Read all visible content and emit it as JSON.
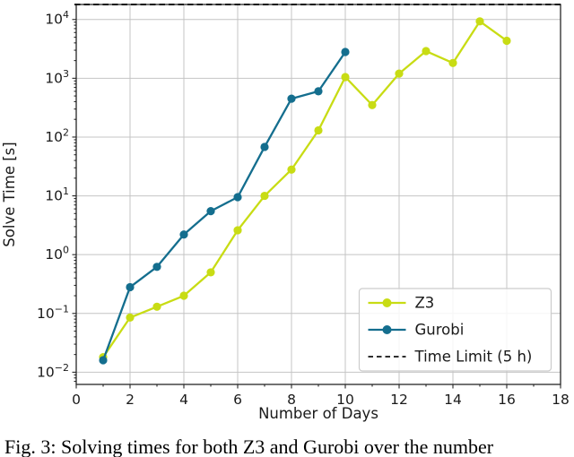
{
  "caption": {
    "text": "Fig. 3: Solving times for both Z3 and Gurobi over the number"
  },
  "chart_data": {
    "type": "line",
    "title": "",
    "xlabel": "Number of Days",
    "ylabel": "Solve Time [s]",
    "x_scale": "linear",
    "y_scale": "log",
    "xlim": [
      0,
      18
    ],
    "ylim": [
      0.0062,
      18000
    ],
    "x_ticks": [
      0,
      2,
      4,
      6,
      8,
      10,
      12,
      14,
      16,
      18
    ],
    "y_tick_base": "10",
    "y_tick_exponents": [
      4,
      3,
      2,
      1,
      0,
      -1,
      -2
    ],
    "grid": true,
    "legend": {
      "position": "lower-right-inside"
    },
    "series": [
      {
        "name": "Z3",
        "color": "#c8dc14",
        "marker": "circle",
        "x": [
          1,
          2,
          3,
          4,
          5,
          6,
          7,
          8,
          9,
          10,
          11,
          12,
          13,
          14,
          15,
          16
        ],
        "y": [
          0.018,
          0.085,
          0.13,
          0.2,
          0.5,
          2.6,
          10,
          28,
          130,
          1050,
          350,
          1200,
          2900,
          1820,
          9300,
          4350
        ]
      },
      {
        "name": "Gurobi",
        "color": "#146e8e",
        "marker": "circle",
        "x": [
          1,
          2,
          3,
          4,
          5,
          6,
          7,
          8,
          9,
          10
        ],
        "y": [
          0.016,
          0.28,
          0.62,
          2.2,
          5.5,
          9.5,
          68,
          450,
          600,
          2800
        ]
      }
    ],
    "reference_lines": [
      {
        "label": "Time Limit (5 h)",
        "value": 18000,
        "style": "dashed",
        "color": "#111111"
      }
    ]
  },
  "colors": {
    "grid": "#c4c4c4",
    "spine": "#262626",
    "tick_text": "#1a1a1a",
    "legend_border": "#cccccc",
    "legend_bg": "#ffffff"
  }
}
